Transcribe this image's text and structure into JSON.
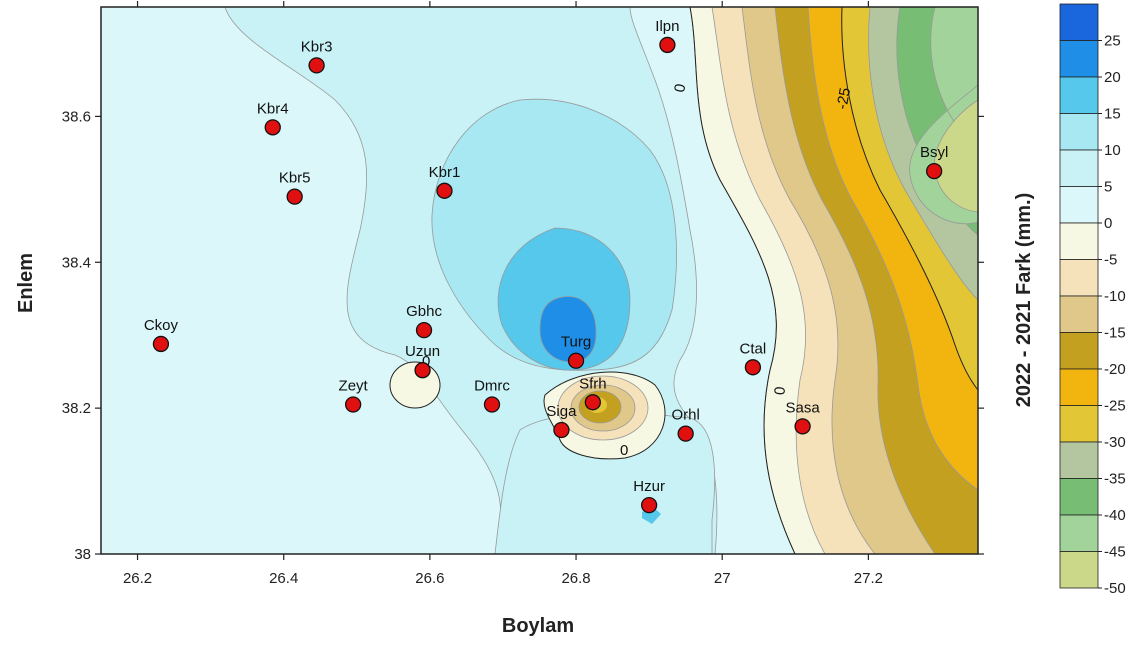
{
  "map": {
    "x_axis": {
      "title": "Boylam",
      "ticks": [
        "26.2",
        "26.4",
        "26.6",
        "26.8",
        "27",
        "27.2"
      ]
    },
    "y_axis": {
      "title": "Enlem",
      "ticks": [
        "38.6",
        "38.4",
        "38.2",
        "38"
      ]
    },
    "colorbar": {
      "title": "2022 - 2021 Fark (mm.)",
      "labels": [
        "25",
        "20",
        "15",
        "10",
        "5",
        "0",
        "-5",
        "-10",
        "-15",
        "-20",
        "-25",
        "-30",
        "-35",
        "-40",
        "-45",
        "-50"
      ],
      "colors": [
        "#1a66dc",
        "#1e8ee6",
        "#55c8ec",
        "#a7e8f2",
        "#c8f2f6",
        "#dbf7f9",
        "#f7f8e4",
        "#f5e2bb",
        "#dfc889",
        "#c4a020",
        "#f2b40e",
        "#e2c636",
        "#b3c6a0",
        "#77be74",
        "#a2d39a",
        "#cbd889"
      ]
    },
    "contour_labels": [
      "0",
      "0",
      "0",
      "0",
      "-25"
    ],
    "stations": [
      {
        "name": "Kbr3",
        "lon": 26.445,
        "lat": 38.67
      },
      {
        "name": "Kbr4",
        "lon": 26.385,
        "lat": 38.585
      },
      {
        "name": "Kbr5",
        "lon": 26.415,
        "lat": 38.49
      },
      {
        "name": "Kbr1",
        "lon": 26.62,
        "lat": 38.498
      },
      {
        "name": "Ilpn",
        "lon": 26.925,
        "lat": 38.698
      },
      {
        "name": "Bsyl",
        "lon": 27.29,
        "lat": 38.525
      },
      {
        "name": "Ckoy",
        "lon": 26.232,
        "lat": 38.288
      },
      {
        "name": "Gbhc",
        "lon": 26.592,
        "lat": 38.307
      },
      {
        "name": "Uzun",
        "lon": 26.59,
        "lat": 38.252
      },
      {
        "name": "Zeyt",
        "lon": 26.495,
        "lat": 38.205
      },
      {
        "name": "Dmrc",
        "lon": 26.685,
        "lat": 38.205
      },
      {
        "name": "Turg",
        "lon": 26.8,
        "lat": 38.265
      },
      {
        "name": "Sfrh",
        "lon": 26.823,
        "lat": 38.208
      },
      {
        "name": "Siga",
        "lon": 26.78,
        "lat": 38.17
      },
      {
        "name": "Orhl",
        "lon": 26.95,
        "lat": 38.165
      },
      {
        "name": "Ctal",
        "lon": 27.042,
        "lat": 38.256
      },
      {
        "name": "Sasa",
        "lon": 27.11,
        "lat": 38.175
      },
      {
        "name": "Hzur",
        "lon": 26.9,
        "lat": 38.067
      }
    ]
  }
}
